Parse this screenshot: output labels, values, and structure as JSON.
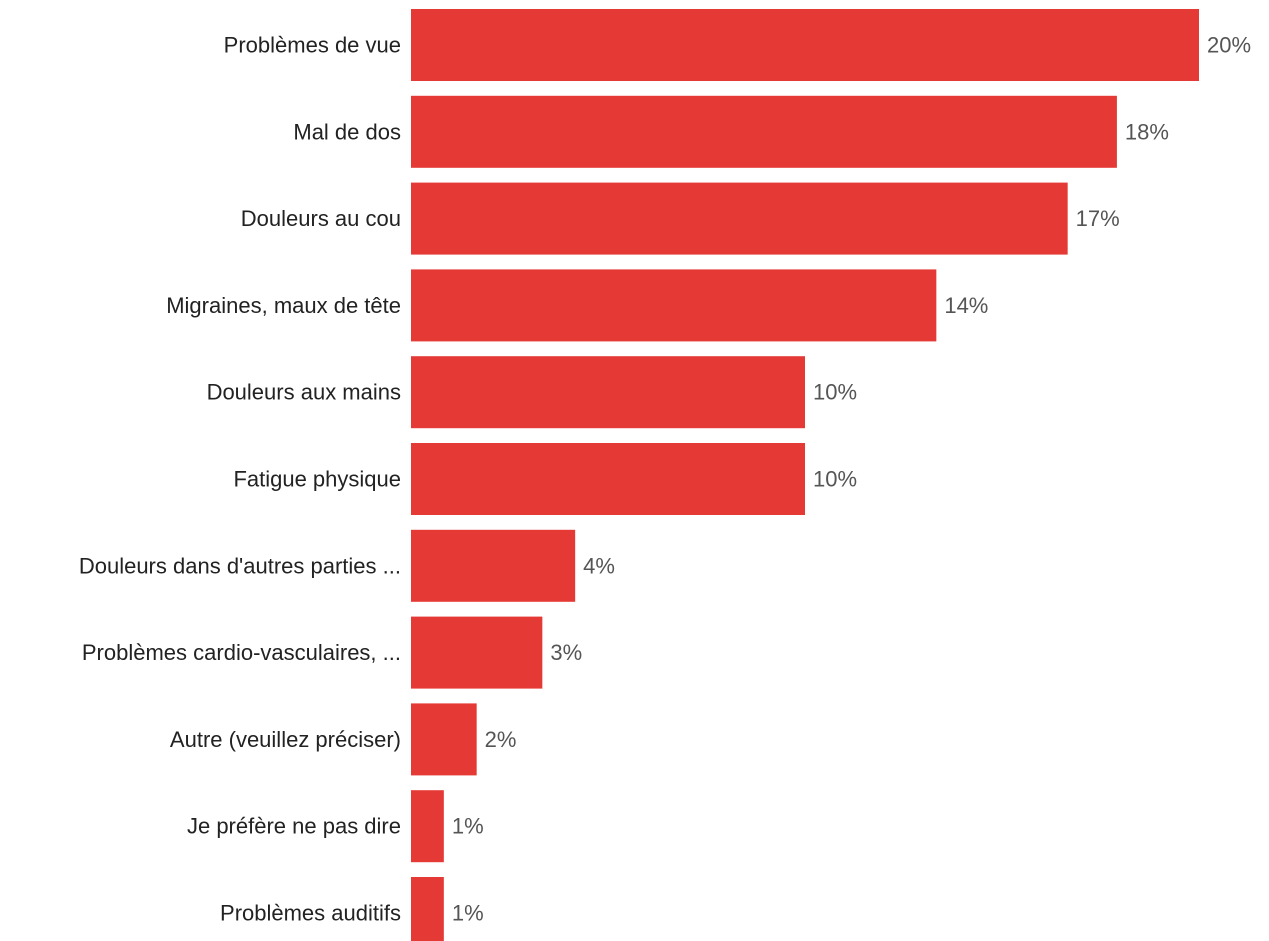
{
  "chart_data": {
    "type": "bar",
    "orientation": "horizontal",
    "categories": [
      "Problèmes de vue",
      "Mal de dos",
      "Douleurs au cou",
      "Migraines, maux de tête",
      "Douleurs aux mains",
      "Fatigue physique",
      "Douleurs dans d'autres parties ...",
      "Problèmes cardio-vasculaires, ...",
      "Autre (veuillez préciser)",
      "Je préfère ne pas dire",
      "Problèmes auditifs"
    ],
    "values": [
      24,
      21.5,
      20,
      16,
      12,
      12,
      5,
      4,
      2,
      1,
      1
    ],
    "value_labels": [
      "20%",
      "18%",
      "17%",
      "14%",
      "10%",
      "10%",
      "4%",
      "3%",
      "2%",
      "1%",
      "1%"
    ],
    "xlim": [
      0,
      24
    ],
    "grid": false,
    "bar_color": "#E53935"
  }
}
